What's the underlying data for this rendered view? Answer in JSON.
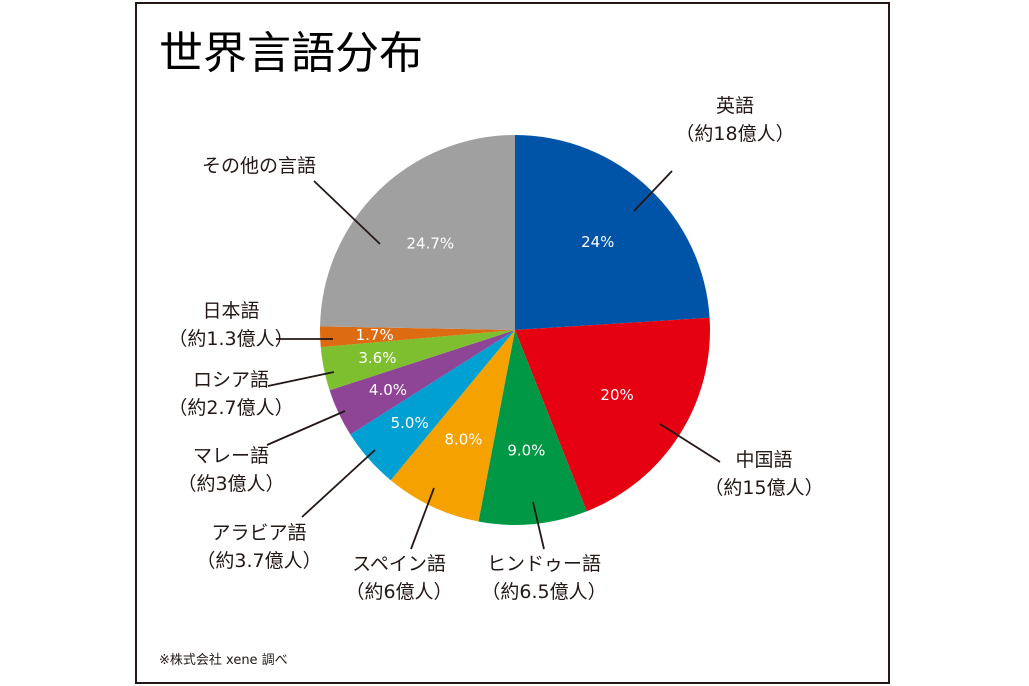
{
  "chart_data": {
    "type": "pie",
    "title": "世界言語分布",
    "note": "※株式会社 xene 調べ",
    "slices": [
      {
        "key": "english",
        "value": 24.0,
        "pct_label": "24%",
        "name": "英語",
        "sub": "（約18億人）",
        "color": "#0054a7"
      },
      {
        "key": "chinese",
        "value": 20.0,
        "pct_label": "20%",
        "name": "中国語",
        "sub": "（約15億人）",
        "color": "#e50012"
      },
      {
        "key": "hindi",
        "value": 9.0,
        "pct_label": "9.0%",
        "name": "ヒンドゥー語",
        "sub": "（約6.5億人）",
        "color": "#009844"
      },
      {
        "key": "spanish",
        "value": 8.0,
        "pct_label": "8.0%",
        "name": "スペイン語",
        "sub": "（約6億人）",
        "color": "#f5a200"
      },
      {
        "key": "arabic",
        "value": 5.0,
        "pct_label": "5.0%",
        "name": "アラビア語",
        "sub": "（約3.7億人）",
        "color": "#00a0d2"
      },
      {
        "key": "malay",
        "value": 4.0,
        "pct_label": "4.0%",
        "name": "マレー語",
        "sub": "（約3億人）",
        "color": "#8f4596"
      },
      {
        "key": "russian",
        "value": 3.6,
        "pct_label": "3.6%",
        "name": "ロシア語",
        "sub": "（約2.7億人）",
        "color": "#7dbf2e"
      },
      {
        "key": "japanese",
        "value": 1.7,
        "pct_label": "1.7%",
        "name": "日本語",
        "sub": "（約1.3億人）",
        "color": "#dd6b11"
      },
      {
        "key": "other",
        "value": 24.7,
        "pct_label": "24.7%",
        "name": "その他の言語",
        "sub": "",
        "color": "#a0a0a0"
      }
    ]
  }
}
